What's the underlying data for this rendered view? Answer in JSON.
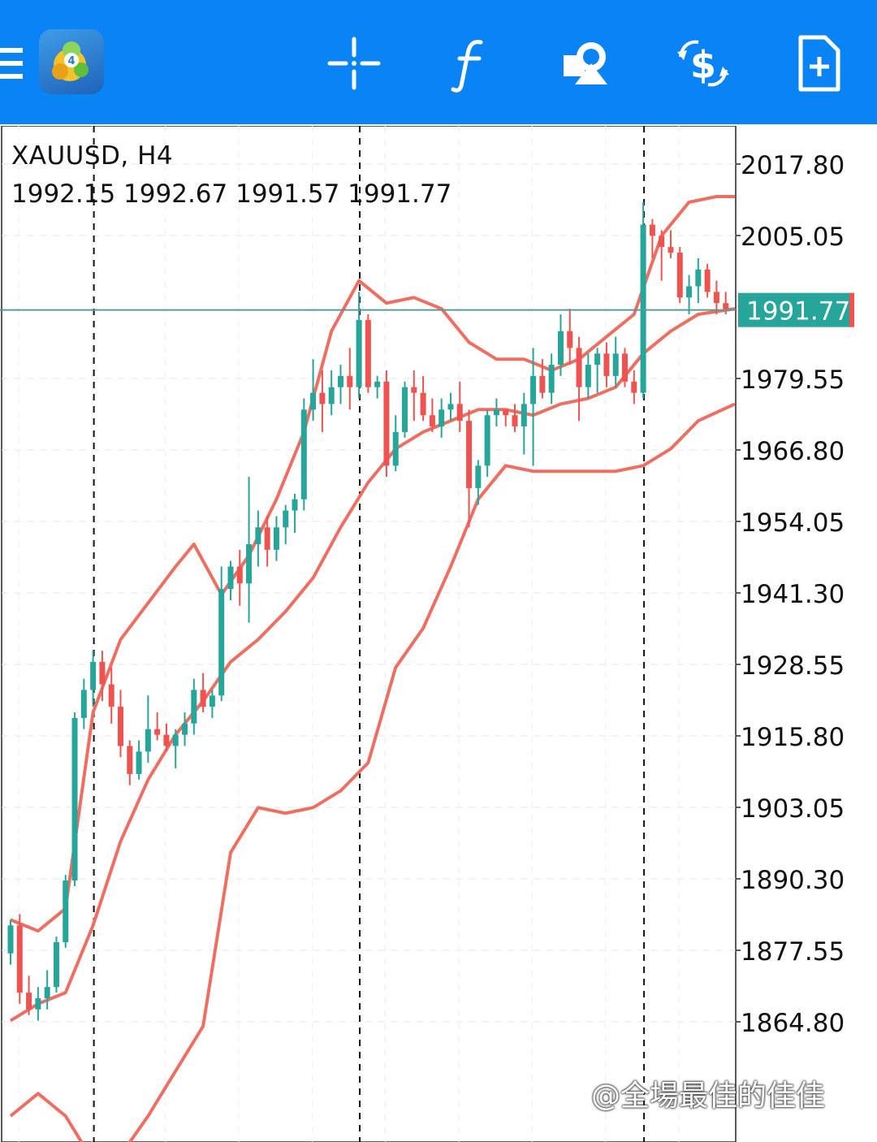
{
  "toolbar": {
    "menu_icon": "hamburger-menu-icon",
    "app_icon": "mt4-logo-icon",
    "logo_badge": "4",
    "buttons": [
      {
        "icon": "crosshair-icon"
      },
      {
        "icon": "indicator-f-icon"
      },
      {
        "icon": "objects-shapes-icon"
      },
      {
        "icon": "trade-dollar-icon"
      },
      {
        "icon": "new-order-doc-icon"
      }
    ],
    "color": "#0a84f5"
  },
  "chart": {
    "symbol_label": "XAUUSD, H4",
    "ohlc_label": "1992.15 1992.67 1991.57 1991.77",
    "current_price": "1991.77",
    "watermark": "@全場最佳的佳佳"
  },
  "colors": {
    "bull": "#26a69a",
    "bear": "#ef5350",
    "bands": "#ee6e62",
    "price_line": "#5a9a96",
    "price_tag_bg": "#26a69a"
  },
  "chart_data": {
    "type": "candlestick",
    "symbol": "XAUUSD",
    "timeframe": "H4",
    "y_ticks": [
      "2017.80",
      "2005.05",
      "1979.55",
      "1966.80",
      "1954.05",
      "1941.30",
      "1928.55",
      "1915.80",
      "1903.05",
      "1890.30",
      "1877.55",
      "1864.80"
    ],
    "ylim": [
      1850,
      2020
    ],
    "current_price": 1991.77,
    "candles": [
      [
        1877,
        1883,
        1875,
        1882
      ],
      [
        1882,
        1884,
        1868,
        1870
      ],
      [
        1870,
        1873,
        1866,
        1867
      ],
      [
        1867,
        1871,
        1865,
        1869
      ],
      [
        1869,
        1874,
        1867,
        1871
      ],
      [
        1871,
        1880,
        1870,
        1879
      ],
      [
        1879,
        1891,
        1878,
        1890
      ],
      [
        1890,
        1920,
        1889,
        1919
      ],
      [
        1919,
        1926,
        1917,
        1924
      ],
      [
        1924,
        1931,
        1921,
        1929
      ],
      [
        1929,
        1931,
        1922,
        1925
      ],
      [
        1925,
        1928,
        1918,
        1921
      ],
      [
        1921,
        1924,
        1912,
        1914
      ],
      [
        1914,
        1915,
        1907,
        1909
      ],
      [
        1909,
        1915,
        1908,
        1913
      ],
      [
        1913,
        1923,
        1911,
        1917
      ],
      [
        1917,
        1920,
        1915,
        1916
      ],
      [
        1916,
        1918,
        1913,
        1914
      ],
      [
        1914,
        1917,
        1910,
        1916
      ],
      [
        1916,
        1920,
        1914,
        1918
      ],
      [
        1918,
        1926,
        1916,
        1924
      ],
      [
        1924,
        1927,
        1920,
        1921
      ],
      [
        1921,
        1924,
        1919,
        1923
      ],
      [
        1923,
        1946,
        1922,
        1942
      ],
      [
        1942,
        1947,
        1940,
        1946
      ],
      [
        1946,
        1949,
        1939,
        1943
      ],
      [
        1943,
        1962,
        1936,
        1950
      ],
      [
        1950,
        1956,
        1946,
        1953
      ],
      [
        1953,
        1955,
        1946,
        1949
      ],
      [
        1949,
        1955,
        1947,
        1953
      ],
      [
        1953,
        1957,
        1950,
        1956
      ],
      [
        1956,
        1959,
        1952,
        1958
      ],
      [
        1958,
        1976,
        1956,
        1974
      ],
      [
        1974,
        1983,
        1972,
        1977
      ],
      [
        1977,
        1981,
        1970,
        1975
      ],
      [
        1975,
        1981,
        1973,
        1978
      ],
      [
        1978,
        1982,
        1975,
        1980
      ],
      [
        1980,
        1985,
        1974,
        1978
      ],
      [
        1978,
        1995,
        1976,
        1990
      ],
      [
        1990,
        1991,
        1977,
        1978
      ],
      [
        1978,
        1980,
        1976,
        1979
      ],
      [
        1979,
        1981,
        1962,
        1964
      ],
      [
        1964,
        1973,
        1963,
        1970
      ],
      [
        1970,
        1979,
        1969,
        1978
      ],
      [
        1978,
        1981,
        1972,
        1977
      ],
      [
        1977,
        1980,
        1972,
        1973
      ],
      [
        1973,
        1976,
        1970,
        1971
      ],
      [
        1971,
        1976,
        1969,
        1974
      ],
      [
        1974,
        1977,
        1972,
        1975
      ],
      [
        1975,
        1979,
        1970,
        1972
      ],
      [
        1972,
        1974,
        1953,
        1960
      ],
      [
        1960,
        1965,
        1957,
        1964
      ],
      [
        1964,
        1974,
        1962,
        1973
      ],
      [
        1973,
        1976,
        1971,
        1974
      ],
      [
        1974,
        1974,
        1971,
        1973
      ],
      [
        1973,
        1975,
        1970,
        1971
      ],
      [
        1971,
        1977,
        1966,
        1975
      ],
      [
        1975,
        1985,
        1964,
        1980
      ],
      [
        1980,
        1983,
        1976,
        1977
      ],
      [
        1977,
        1984,
        1975,
        1982
      ],
      [
        1982,
        1991,
        1980,
        1988
      ],
      [
        1988,
        1992,
        1982,
        1985
      ],
      [
        1985,
        1987,
        1972,
        1978
      ],
      [
        1978,
        1984,
        1976,
        1982
      ],
      [
        1982,
        1985,
        1977,
        1984
      ],
      [
        1984,
        1986,
        1978,
        1980
      ],
      [
        1980,
        1987,
        1978,
        1984
      ],
      [
        1984,
        1985,
        1978,
        1979
      ],
      [
        1979,
        1981,
        1975,
        1977
      ],
      [
        1977,
        2011,
        1976,
        2007
      ],
      [
        2007,
        2008,
        2001,
        2005
      ],
      [
        2005,
        2006,
        1997,
        2003
      ],
      [
        2003,
        2006,
        2001,
        2002
      ],
      [
        2002,
        2003,
        1993,
        1994
      ],
      [
        1994,
        1998,
        1991,
        1996
      ],
      [
        1996,
        2001,
        1993,
        1999
      ],
      [
        1999,
        2000,
        1994,
        1995
      ],
      [
        1995,
        1997,
        1991,
        1993
      ],
      [
        1993,
        1995,
        1991,
        1992
      ]
    ],
    "bands": {
      "upper": [
        [
          0,
          1883
        ],
        [
          3,
          1881
        ],
        [
          6,
          1885
        ],
        [
          9,
          1920
        ],
        [
          12,
          1933
        ],
        [
          18,
          1946
        ],
        [
          20,
          1950
        ],
        [
          23,
          1941
        ],
        [
          26,
          1948
        ],
        [
          29,
          1958
        ],
        [
          32,
          1970
        ],
        [
          35,
          1988
        ],
        [
          38,
          1997
        ],
        [
          41,
          1993
        ],
        [
          44,
          1994
        ],
        [
          47,
          1992
        ],
        [
          50,
          1986
        ],
        [
          53,
          1983
        ],
        [
          56,
          1983
        ],
        [
          59,
          1981
        ],
        [
          62,
          1983
        ],
        [
          65,
          1987
        ],
        [
          68,
          1991
        ],
        [
          71,
          2005
        ],
        [
          74,
          2011
        ],
        [
          77,
          2012
        ],
        [
          79,
          2012
        ]
      ],
      "middle": [
        [
          0,
          1865
        ],
        [
          3,
          1868
        ],
        [
          6,
          1870
        ],
        [
          9,
          1882
        ],
        [
          12,
          1897
        ],
        [
          15,
          1908
        ],
        [
          18,
          1916
        ],
        [
          21,
          1922
        ],
        [
          24,
          1929
        ],
        [
          27,
          1933
        ],
        [
          30,
          1938
        ],
        [
          33,
          1944
        ],
        [
          36,
          1953
        ],
        [
          39,
          1961
        ],
        [
          42,
          1967
        ],
        [
          45,
          1970
        ],
        [
          48,
          1972
        ],
        [
          51,
          1974
        ],
        [
          54,
          1974
        ],
        [
          57,
          1973
        ],
        [
          60,
          1975
        ],
        [
          63,
          1976
        ],
        [
          66,
          1978
        ],
        [
          69,
          1984
        ],
        [
          72,
          1988
        ],
        [
          75,
          1991
        ],
        [
          79,
          1992
        ]
      ],
      "lower": [
        [
          0,
          1848
        ],
        [
          3,
          1852
        ],
        [
          6,
          1848
        ],
        [
          9,
          1840
        ],
        [
          12,
          1841
        ],
        [
          15,
          1848
        ],
        [
          18,
          1856
        ],
        [
          21,
          1864
        ],
        [
          24,
          1895
        ],
        [
          27,
          1903
        ],
        [
          30,
          1902
        ],
        [
          33,
          1903
        ],
        [
          36,
          1906
        ],
        [
          39,
          1911
        ],
        [
          42,
          1928
        ],
        [
          45,
          1935
        ],
        [
          48,
          1946
        ],
        [
          51,
          1958
        ],
        [
          54,
          1964
        ],
        [
          57,
          1963
        ],
        [
          60,
          1963
        ],
        [
          63,
          1963
        ],
        [
          66,
          1963
        ],
        [
          69,
          1964
        ],
        [
          72,
          1967
        ],
        [
          75,
          1972
        ],
        [
          79,
          1975
        ]
      ]
    },
    "vertical_separators": [
      9,
      38,
      69
    ]
  }
}
